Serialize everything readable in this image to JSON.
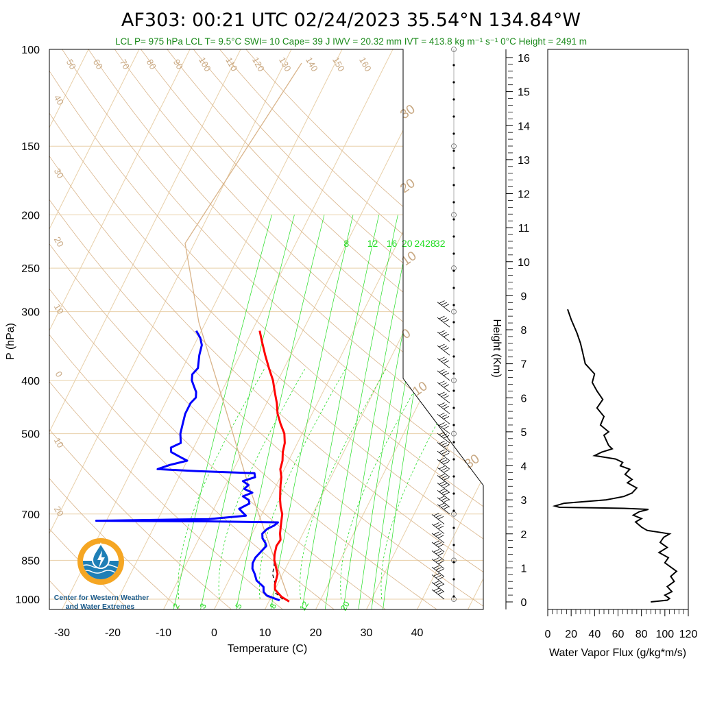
{
  "title": "AF303: 00:21 UTC 02/24/2023  35.54°N 134.84°W",
  "stats_line": "LCL P= 975 hPa  LCL T= 9.5°C  SWI= 10  Cape= 39 J  IWV = 20.32 mm  IVT = 413.8 kg m⁻¹ s⁻¹  0°C Height = 2491 m",
  "logo": {
    "line1": "Center for Western Weather",
    "line2": "and Water Extremes",
    "colors": {
      "ring": "#f5a623",
      "water": "#1f7fb6",
      "drop": "#ffffff"
    }
  },
  "colors": {
    "temperature": "#ff0000",
    "dewpoint": "#0000ff",
    "parcel": "#000000",
    "isotherm": "#e8cfa8",
    "dry_adiabat": "#d9b48a",
    "mixing_ratio": "#22dd22",
    "wind_barb": "#000000",
    "flux": "#000000"
  },
  "chart_data": [
    {
      "type": "line",
      "title": "AF303: 00:21 UTC 02/24/2023  35.54°N 134.84°W",
      "chart_kind": "skew-T log-P",
      "xlabel": "Temperature (C)",
      "ylabel": "P (hPa)",
      "xlim": [
        -33,
        52
      ],
      "ylim": [
        1050,
        100
      ],
      "yscale": "log",
      "x_ticks": [
        -30,
        -20,
        -10,
        0,
        10,
        20,
        30,
        40
      ],
      "y_ticks": [
        100,
        150,
        200,
        250,
        300,
        400,
        500,
        700,
        850,
        1000
      ],
      "mixing_ratio_labels_top": [
        "8",
        "12",
        "16",
        "20",
        "24",
        "28",
        "32"
      ],
      "mixing_ratio_labels_bottom": [
        "2",
        "3",
        "5",
        "8",
        "12",
        "20"
      ],
      "dry_adiabat_labels": [
        "50",
        "60",
        "70",
        "80",
        "90",
        "100",
        "110",
        "120",
        "130",
        "140",
        "150",
        "160"
      ],
      "left_edge_labels": [
        "40",
        "30",
        "20",
        "10",
        "0",
        "10",
        "20"
      ],
      "inner_labels": [
        "30",
        "20",
        "10",
        "0",
        "10",
        "30"
      ],
      "series": [
        {
          "name": "Temperature",
          "p": [
            1010,
            1000,
            990,
            975,
            960,
            940,
            900,
            850,
            830,
            800,
            780,
            760,
            740,
            720,
            700,
            680,
            660,
            640,
            620,
            600,
            580,
            560,
            540,
            520,
            500,
            480,
            460,
            440,
            420,
            400,
            380,
            360,
            340,
            325
          ],
          "t": [
            14.0,
            13.0,
            12.0,
            11.0,
            10.0,
            9.5,
            9.0,
            7.0,
            6.5,
            6.0,
            6.2,
            5.5,
            5.0,
            4.5,
            4.0,
            3.0,
            2.2,
            1.5,
            0.8,
            0.2,
            -0.8,
            -1.2,
            -2.0,
            -2.5,
            -3.5,
            -5.2,
            -6.8,
            -8.0,
            -9.5,
            -11.0,
            -13.0,
            -15.0,
            -17.0,
            -18.5
          ]
        },
        {
          "name": "Dewpoint",
          "p": [
            1005,
            995,
            985,
            970,
            950,
            925,
            900,
            880,
            860,
            840,
            820,
            800,
            790,
            775,
            760,
            745,
            735,
            725,
            722,
            720,
            715,
            705,
            695,
            685,
            670,
            660,
            650,
            640,
            630,
            620,
            610,
            600,
            590,
            585,
            580,
            570,
            560,
            550,
            540,
            530,
            520,
            500,
            480,
            460,
            440,
            430,
            420,
            410,
            400,
            390,
            380,
            370,
            360,
            345,
            335,
            325
          ],
          "t": [
            12.0,
            10.5,
            9.0,
            8.0,
            7.5,
            5.5,
            4.5,
            3.5,
            3.0,
            3.0,
            3.5,
            4.0,
            3.5,
            2.5,
            2.0,
            2.5,
            3.5,
            4.0,
            -10.0,
            -32.0,
            -10.0,
            -3.0,
            -4.0,
            -5.0,
            -3.5,
            -4.0,
            -5.5,
            -4.0,
            -6.0,
            -5.5,
            -7.0,
            -5.0,
            -5.5,
            -17.0,
            -25.0,
            -23.0,
            -20.0,
            -22.0,
            -24.0,
            -24.5,
            -23.0,
            -24.0,
            -24.5,
            -25.0,
            -25.0,
            -24.5,
            -25.0,
            -26.0,
            -27.0,
            -27.5,
            -27.0,
            -27.5,
            -28.0,
            -28.5,
            -29.5,
            -31.0
          ]
        },
        {
          "name": "Parcel",
          "p": [
            1000,
            975,
            950,
            925,
            900,
            870,
            850
          ],
          "t": [
            12.5,
            10.5,
            9.8,
            9.0,
            8.0,
            7.5,
            7.0
          ]
        }
      ],
      "wind_levels_hpa": [
        1000,
        970,
        940,
        910,
        880,
        850,
        820,
        790,
        760,
        730,
        700,
        680,
        660,
        640,
        620,
        600,
        580,
        560,
        540,
        520,
        500,
        480,
        460,
        440,
        420,
        400,
        380,
        360,
        340,
        320,
        300
      ]
    },
    {
      "type": "line",
      "chart_kind": "height profile",
      "xlabel": "Water Vapor Flux (g/kg*m/s)",
      "ylabel": "Height (Km)",
      "xlim": [
        0,
        120
      ],
      "ylim": [
        -0.25,
        16.45
      ],
      "x_ticks": [
        0,
        20,
        40,
        60,
        80,
        100,
        120
      ],
      "y_ticks": [
        0,
        1,
        2,
        3,
        4,
        5,
        6,
        7,
        8,
        9,
        10,
        11,
        12,
        13,
        14,
        15,
        16
      ],
      "series": [
        {
          "name": "Water Vapor Flux",
          "h_km": [
            0.0,
            0.05,
            0.1,
            0.2,
            0.3,
            0.45,
            0.6,
            0.75,
            0.9,
            1.0,
            1.15,
            1.3,
            1.45,
            1.6,
            1.75,
            1.9,
            2.0,
            2.05,
            2.1,
            2.2,
            2.35,
            2.45,
            2.55,
            2.65,
            2.72,
            2.75,
            2.78,
            2.82,
            2.9,
            3.0,
            3.1,
            3.2,
            3.35,
            3.5,
            3.6,
            3.75,
            3.9,
            4.0,
            4.1,
            4.2,
            4.3,
            4.4,
            4.5,
            4.6,
            4.75,
            4.9,
            5.0,
            5.2,
            5.45,
            5.7,
            5.95,
            6.2,
            6.45,
            6.7,
            7.0,
            7.3,
            7.6,
            7.9,
            8.3,
            8.6
          ],
          "flux": [
            88,
            102,
            104,
            100,
            106,
            102,
            108,
            105,
            110,
            106,
            100,
            103,
            95,
            102,
            96,
            99,
            104,
            95,
            85,
            80,
            75,
            80,
            73,
            78,
            86,
            65,
            10,
            6,
            14,
            50,
            65,
            72,
            76,
            68,
            72,
            66,
            70,
            62,
            64,
            58,
            40,
            46,
            55,
            52,
            50,
            48,
            52,
            45,
            48,
            42,
            47,
            42,
            38,
            40,
            32,
            30,
            28,
            25,
            20,
            17
          ]
        }
      ]
    }
  ]
}
